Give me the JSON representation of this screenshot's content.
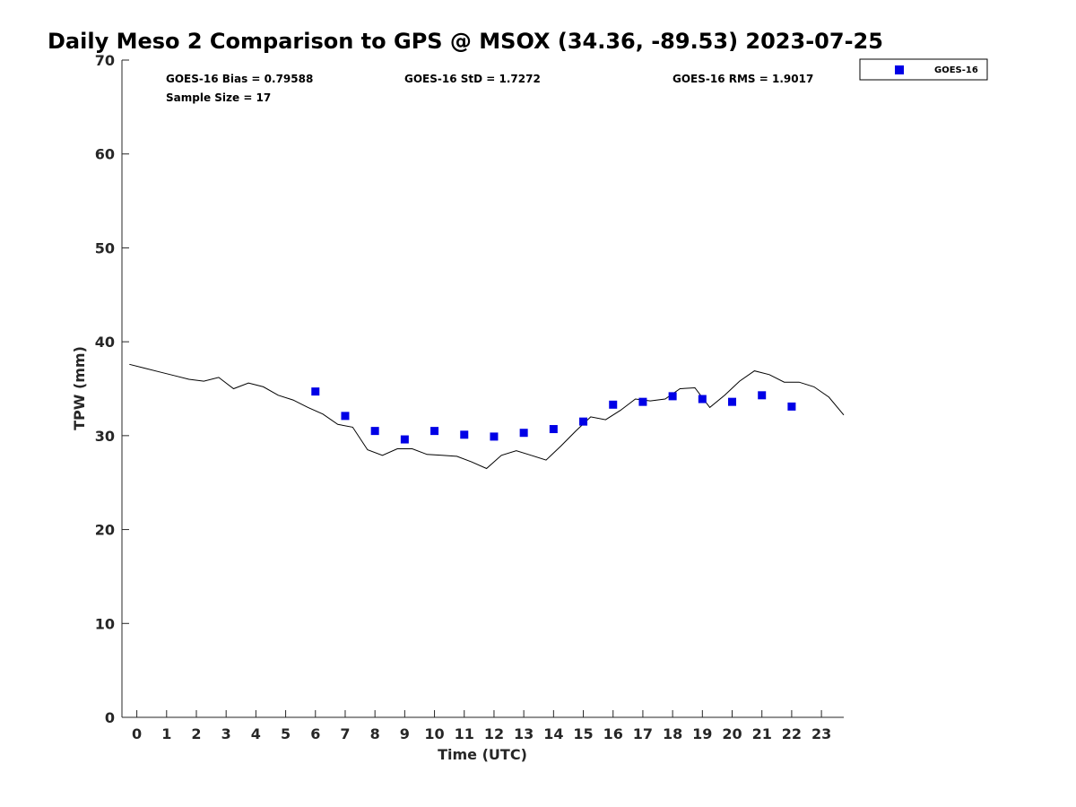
{
  "chart_data": {
    "type": "scatter",
    "title": "Daily Meso 2 Comparison to GPS @ MSOX (34.36, -89.53) 2023-07-25",
    "xlabel": "Time (UTC)",
    "ylabel": "TPW (mm)",
    "xlim": [
      -0.5,
      23.75
    ],
    "ylim": [
      0,
      70
    ],
    "x_ticks": [
      "0",
      "1",
      "2",
      "3",
      "4",
      "5",
      "6",
      "7",
      "8",
      "9",
      "10",
      "11",
      "12",
      "13",
      "14",
      "15",
      "16",
      "17",
      "18",
      "19",
      "20",
      "21",
      "22",
      "23"
    ],
    "y_ticks": [
      "0",
      "10",
      "20",
      "30",
      "40",
      "50",
      "60",
      "70"
    ],
    "grid": false,
    "legend_position": "top-right, outside plot",
    "stats": {
      "bias": "GOES-16 Bias = 0.79588",
      "std": "GOES-16 StD = 1.7272",
      "rms": "GOES-16 RMS = 1.9017",
      "sample": "Sample Size = 17"
    },
    "series": [
      {
        "name": "GOES-16",
        "marker": "square",
        "color": "#0000e6",
        "x": [
          6,
          7,
          8,
          9,
          10,
          11,
          12,
          13,
          14,
          15,
          16,
          17,
          18,
          19,
          20,
          21,
          22
        ],
        "y": [
          34.7,
          32.1,
          30.5,
          29.6,
          30.5,
          30.1,
          29.9,
          30.3,
          30.7,
          31.5,
          33.3,
          33.6,
          34.2,
          33.9,
          33.6,
          34.3,
          33.1
        ]
      },
      {
        "marker": "line",
        "color": "#000000",
        "x": [
          -0.25,
          0.25,
          0.75,
          1.25,
          1.75,
          2.25,
          2.75,
          3.25,
          3.75,
          4.25,
          4.75,
          5.25,
          5.75,
          6.25,
          6.75,
          7.25,
          7.75,
          8.25,
          8.75,
          9.25,
          9.75,
          10.25,
          10.75,
          11.25,
          11.75,
          12.25,
          12.75,
          13.25,
          13.75,
          14.25,
          14.75,
          15.25,
          15.75,
          16.25,
          16.75,
          17.25,
          17.75,
          18.25,
          18.75,
          19.25,
          19.75,
          20.25,
          20.75,
          21.25,
          21.75,
          22.25,
          22.75,
          23.25,
          23.75
        ],
        "y": [
          37.6,
          37.2,
          36.8,
          36.4,
          36.0,
          35.8,
          36.2,
          35.0,
          35.6,
          35.2,
          34.3,
          33.8,
          33.0,
          32.3,
          31.2,
          30.9,
          28.5,
          27.9,
          28.6,
          28.6,
          28.0,
          27.9,
          27.8,
          27.2,
          26.5,
          27.9,
          28.4,
          27.9,
          27.4,
          28.9,
          30.5,
          32.0,
          31.7,
          32.7,
          33.9,
          33.7,
          33.9,
          35.0,
          35.1,
          33.0,
          34.3,
          35.8,
          36.9,
          36.5,
          35.7,
          35.7,
          35.2,
          34.1,
          32.2
        ]
      }
    ]
  }
}
